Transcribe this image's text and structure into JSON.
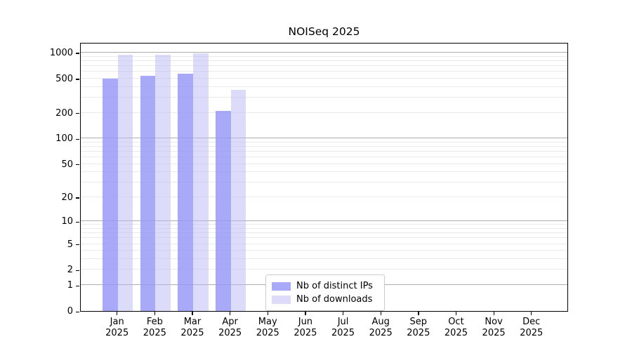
{
  "chart_data": {
    "type": "bar",
    "title": "NOISeq 2025",
    "year": "2025",
    "months": [
      "Jan",
      "Feb",
      "Mar",
      "Apr",
      "May",
      "Jun",
      "Jul",
      "Aug",
      "Sep",
      "Oct",
      "Nov",
      "Dec"
    ],
    "yticks": [
      0,
      1,
      2,
      5,
      10,
      20,
      50,
      100,
      200,
      500,
      1000
    ],
    "scale": "log1p",
    "ylim": [
      0,
      1330
    ],
    "grid": "horizontal, log minor + major lines",
    "legend_position": "bottom-center",
    "series": [
      {
        "name": "Nb of distinct IPs",
        "color": "#a9a9f4",
        "fill": "rgba(150,150,248,0.82)",
        "values": [
          500,
          540,
          570,
          210,
          null,
          null,
          null,
          null,
          null,
          null,
          null,
          null
        ]
      },
      {
        "name": "Nb of downloads",
        "color": "#dcdcfa",
        "fill": "rgba(185,185,245,0.5)",
        "values": [
          950,
          950,
          975,
          370,
          null,
          null,
          null,
          null,
          null,
          null,
          null,
          null
        ]
      }
    ]
  }
}
